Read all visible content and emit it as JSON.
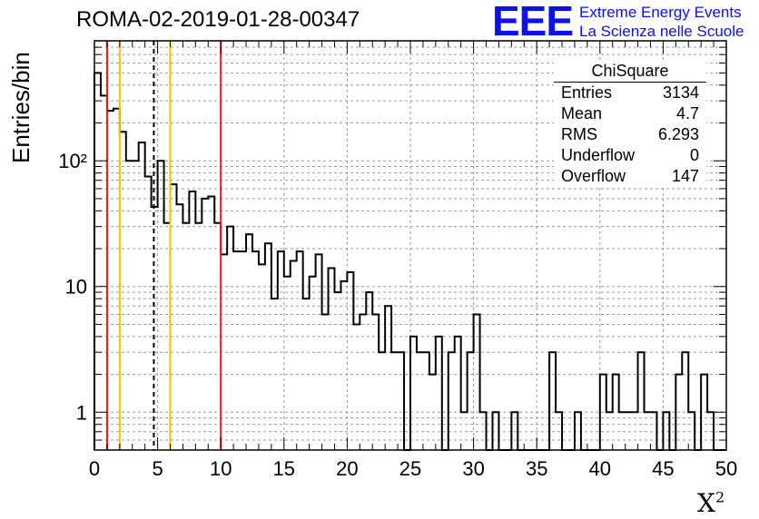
{
  "title": "ROMA-02-2019-01-28-00347",
  "logo": {
    "mark": "EEE",
    "line1": "Extreme Energy Events",
    "line2": "La Scienza nelle Scuole",
    "color": "#0b10f0"
  },
  "stats_box": {
    "title": "ChiSquare",
    "rows": [
      {
        "label": "Entries",
        "value": "3134"
      },
      {
        "label": "Mean",
        "value": "4.7"
      },
      {
        "label": "RMS",
        "value": "6.293"
      },
      {
        "label": "Underflow",
        "value": "0"
      },
      {
        "label": "Overflow",
        "value": "147"
      }
    ]
  },
  "chart_data": {
    "type": "histogram",
    "ylabel": "Entries/bin",
    "xlabel": "X",
    "xlabel_superscript": "2",
    "xlim": [
      0,
      50
    ],
    "ylim": [
      0.5,
      900
    ],
    "yscale": "log",
    "grid": true,
    "bin_width": 0.5,
    "x_ticks": [
      "0",
      "5",
      "10",
      "15",
      "20",
      "25",
      "30",
      "35",
      "40",
      "45",
      "50"
    ],
    "y_ticks": [
      "1",
      "10",
      "10²"
    ],
    "counts": [
      500,
      330,
      250,
      260,
      170,
      100,
      100,
      140,
      75,
      43,
      100,
      32,
      65,
      45,
      32,
      57,
      32,
      50,
      52,
      32,
      18,
      30,
      19,
      19,
      26,
      19,
      15,
      22,
      8,
      19,
      12,
      16,
      19,
      8,
      12,
      18,
      6,
      14,
      9,
      11,
      13,
      5,
      6,
      9,
      6,
      3,
      7,
      3,
      3,
      0,
      4,
      3,
      3,
      2,
      4,
      0,
      3,
      4,
      1,
      3,
      6,
      1,
      0,
      1,
      0,
      0,
      1,
      0,
      0,
      0,
      0,
      0,
      3,
      1,
      0,
      0,
      1,
      0,
      0,
      0,
      2,
      1,
      2,
      1,
      1,
      1,
      3,
      1,
      1,
      0,
      1,
      0,
      2,
      3,
      1,
      0,
      2,
      1,
      0,
      0
    ],
    "vertical_lines": [
      {
        "x": 1,
        "color": "#e8191c",
        "style": "solid"
      },
      {
        "x": 2,
        "color": "#f2c300",
        "style": "solid"
      },
      {
        "x": 4.7,
        "color": "#000000",
        "style": "dashed"
      },
      {
        "x": 6,
        "color": "#f2c300",
        "style": "solid"
      },
      {
        "x": 10,
        "color": "#e8191c",
        "style": "solid"
      }
    ]
  }
}
